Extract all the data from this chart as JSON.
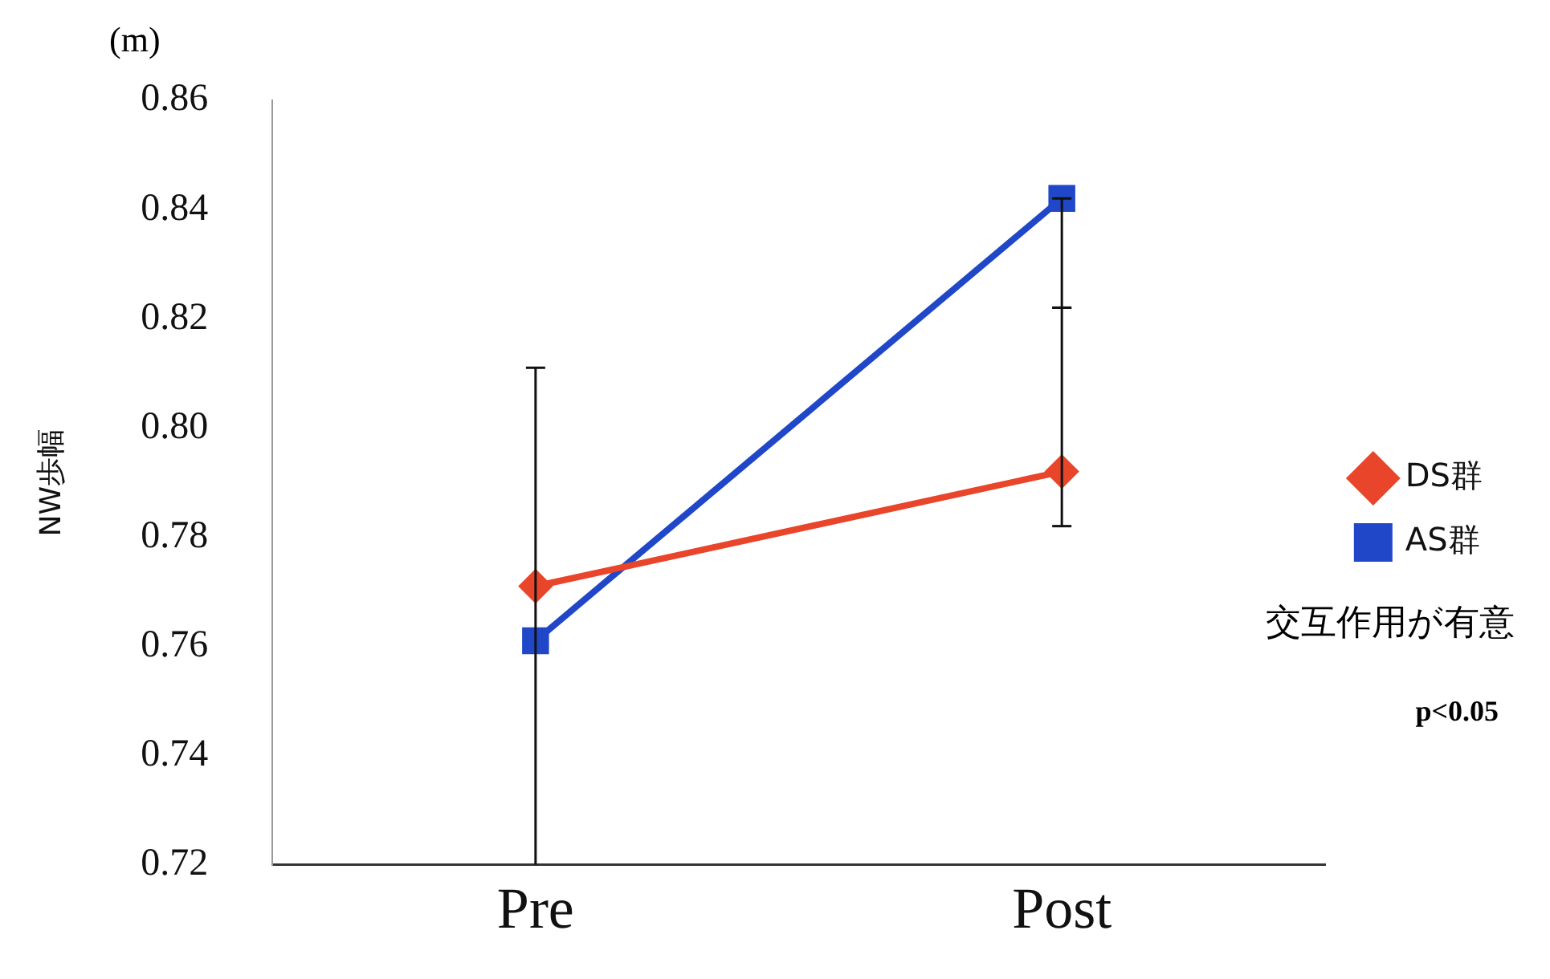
{
  "chart_data": {
    "type": "line",
    "ylabel": "NW歩幅",
    "categories": [
      "Pre",
      "Post"
    ],
    "series": [
      {
        "name": "DS群",
        "color": "#e8452a",
        "marker": "diamond",
        "values": [
          0.771,
          0.792
        ],
        "errors": [
          null,
          [
            0.782,
            0.822
          ]
        ]
      },
      {
        "name": "AS群",
        "color": "#1f47c8",
        "marker": "square",
        "values": [
          0.761,
          0.842
        ],
        "errors": [
          [
            0.72,
            0.811
          ],
          [
            0.822,
            0.842
          ]
        ]
      }
    ],
    "ylim": [
      0.72,
      0.86
    ],
    "yticks": [
      0.72,
      0.74,
      0.76,
      0.78,
      {
        "value": 0.8,
        "label": "0.80"
      },
      0.82,
      0.84,
      0.86
    ],
    "grid": false,
    "legend": "right",
    "annotations": [
      "(m)",
      "交互作用が有意",
      "p<0.05"
    ]
  }
}
